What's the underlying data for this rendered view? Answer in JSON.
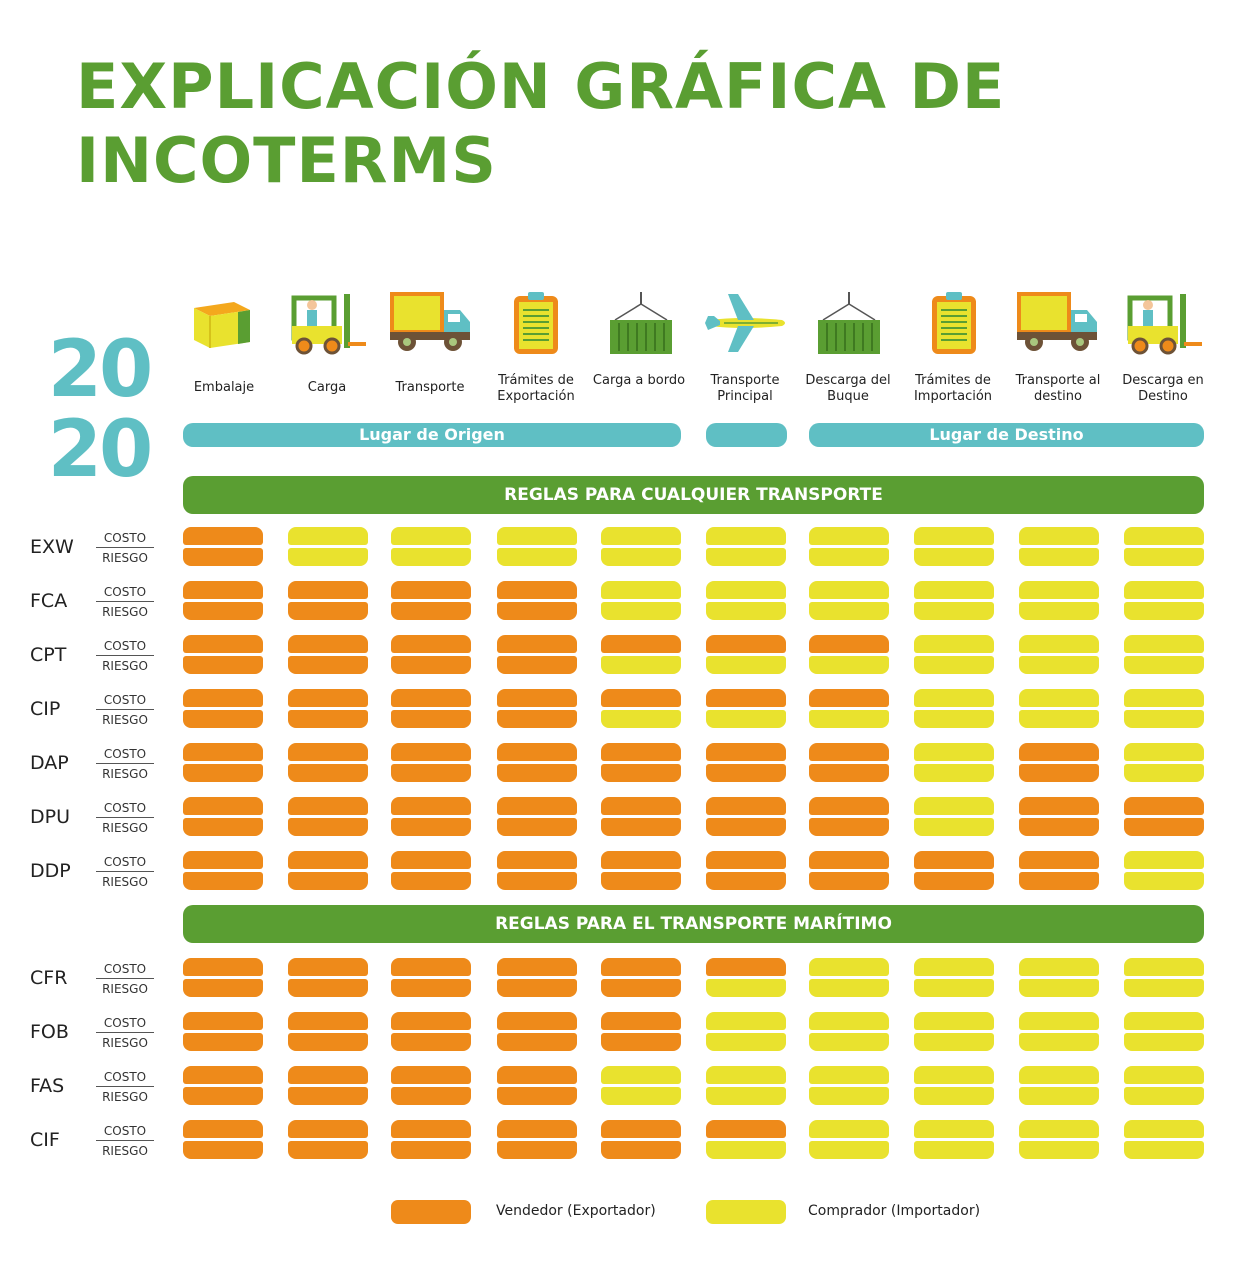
{
  "title_line1": "EXPLICACIÓN GRÁFICA DE",
  "title_line2": "INCOTERMS",
  "year_top": "20",
  "year_bottom": "20",
  "colors": {
    "seller": "#ee8a1a",
    "buyer": "#e9e22e",
    "green": "#5a9e32",
    "teal": "#5fbfc4"
  },
  "stages": [
    {
      "label": "Embalaje",
      "icon": "box-icon"
    },
    {
      "label": "Carga",
      "icon": "forklift-icon"
    },
    {
      "label": "Transporte",
      "icon": "truck-icon"
    },
    {
      "label": "Trámites de Exportación",
      "icon": "clipboard-icon"
    },
    {
      "label": "Carga a bordo",
      "icon": "container-icon"
    },
    {
      "label": "Transporte Principal",
      "icon": "airplane-icon"
    },
    {
      "label": "Descarga del Buque",
      "icon": "container-icon"
    },
    {
      "label": "Trámites de Importación",
      "icon": "clipboard-icon"
    },
    {
      "label": "Transporte al destino",
      "icon": "truck-icon"
    },
    {
      "label": "Descarga en Destino",
      "icon": "forklift-icon"
    }
  ],
  "origin_label": "Lugar de Origen",
  "destination_label": "Lugar de Destino",
  "section_any": "REGLAS PARA CUALQUIER TRANSPORTE",
  "section_sea": "REGLAS PARA EL TRANSPORTE MARÍTIMO",
  "costo_label": "COSTO",
  "riesgo_label": "RIESGO",
  "rules_any": [
    {
      "term": "EXW",
      "costo": "SBBBBBBBBB",
      "riesgo": "SBBBBBBBBB"
    },
    {
      "term": "FCA",
      "costo": "SSSSBBBBBB",
      "riesgo": "SSSSBBBBBB"
    },
    {
      "term": "CPT",
      "costo": "SSSSSSSBBB",
      "riesgo": "SSSSBBBBBB"
    },
    {
      "term": "CIP",
      "costo": "SSSSSSSBBB",
      "riesgo": "SSSSBBBBBB"
    },
    {
      "term": "DAP",
      "costo": "SSSSSSSBSB",
      "riesgo": "SSSSSSSBSB"
    },
    {
      "term": "DPU",
      "costo": "SSSSSSSBSS",
      "riesgo": "SSSSSSSBSS"
    },
    {
      "term": "DDP",
      "costo": "SSSSSSSSSB",
      "riesgo": "SSSSSSSSSB"
    }
  ],
  "rules_sea": [
    {
      "term": "CFR",
      "costo": "SSSSSSBBBB",
      "riesgo": "SSSSSBBBBB"
    },
    {
      "term": "FOB",
      "costo": "SSSSSBBBBB",
      "riesgo": "SSSSSBBBBB"
    },
    {
      "term": "FAS",
      "costo": "SSSSBBBBBB",
      "riesgo": "SSSSBBBBBB"
    },
    {
      "term": "CIF",
      "costo": "SSSSSSBBBB",
      "riesgo": "SSSSSBBBBB"
    }
  ],
  "legend": {
    "seller": "Vendedor (Exportador)",
    "buyer": "Comprador (Importador)"
  }
}
